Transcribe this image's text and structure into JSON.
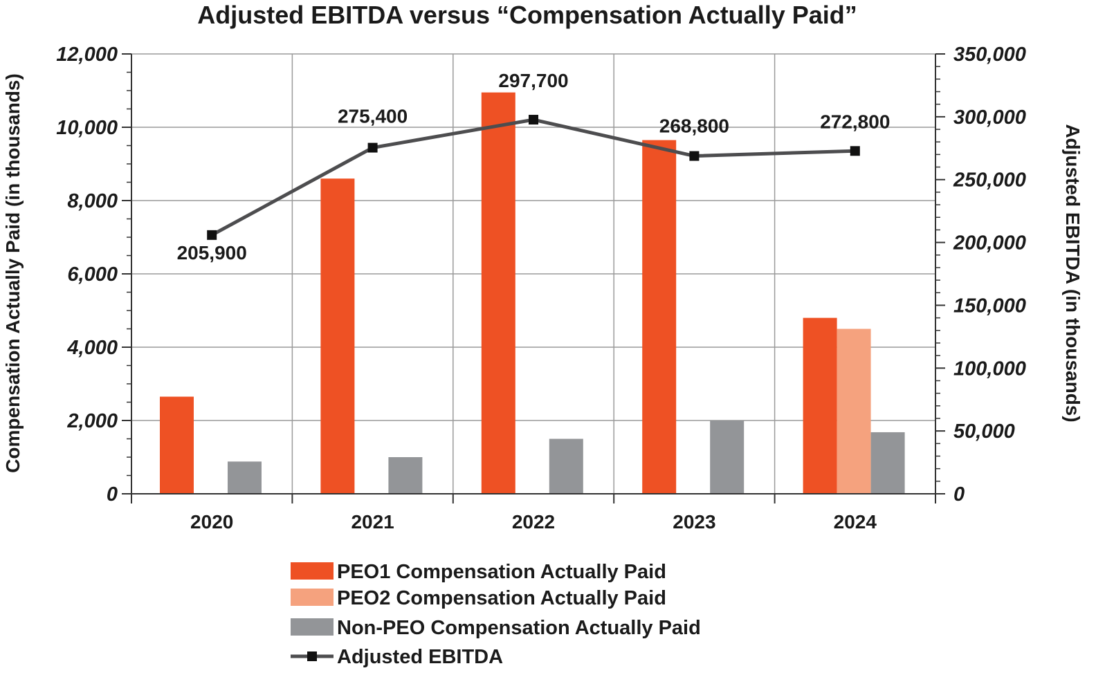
{
  "chart_data": {
    "type": "bar",
    "title": "Adjusted EBITDA versus “Compensation Actually Paid”",
    "categories": [
      "2020",
      "2021",
      "2022",
      "2023",
      "2024"
    ],
    "y_left": {
      "label": "Compensation Actually Paid (in thousands)",
      "range": [
        0,
        12000
      ],
      "ticks": [
        "0",
        "2,000",
        "4,000",
        "6,000",
        "8,000",
        "10,000",
        "12,000"
      ],
      "tick_values": [
        0,
        2000,
        4000,
        6000,
        8000,
        10000,
        12000
      ]
    },
    "y_right": {
      "label": "Adjusted EBITDA (in thousands)",
      "range": [
        0,
        350000
      ],
      "ticks": [
        "0",
        "50,000",
        "100,000",
        "150,000",
        "200,000",
        "250,000",
        "300,000",
        "350,000"
      ],
      "tick_values": [
        0,
        50000,
        100000,
        150000,
        200000,
        250000,
        300000,
        350000
      ]
    },
    "series": [
      {
        "name": "PEO1 Compensation Actually Paid",
        "type": "bar",
        "axis": "left",
        "color": "#ee5124",
        "values": [
          2650,
          8600,
          10950,
          9650,
          4800
        ]
      },
      {
        "name": "PEO2 Compensation Actually Paid",
        "type": "bar",
        "axis": "left",
        "color": "#f5a27e",
        "values": [
          null,
          null,
          null,
          null,
          4500
        ]
      },
      {
        "name": "Non-PEO Compensation Actually Paid",
        "type": "bar",
        "axis": "left",
        "color": "#939598",
        "values": [
          880,
          1000,
          1500,
          2000,
          1680
        ]
      },
      {
        "name": "Adjusted EBITDA",
        "type": "line",
        "axis": "right",
        "color": "#4d4d4f",
        "values": [
          205900,
          275400,
          297700,
          268800,
          272800
        ],
        "labels": [
          "205,900",
          "275,400",
          "297,700",
          "268,800",
          "272,800"
        ]
      }
    ],
    "grid": true,
    "legend_position": "bottom"
  }
}
